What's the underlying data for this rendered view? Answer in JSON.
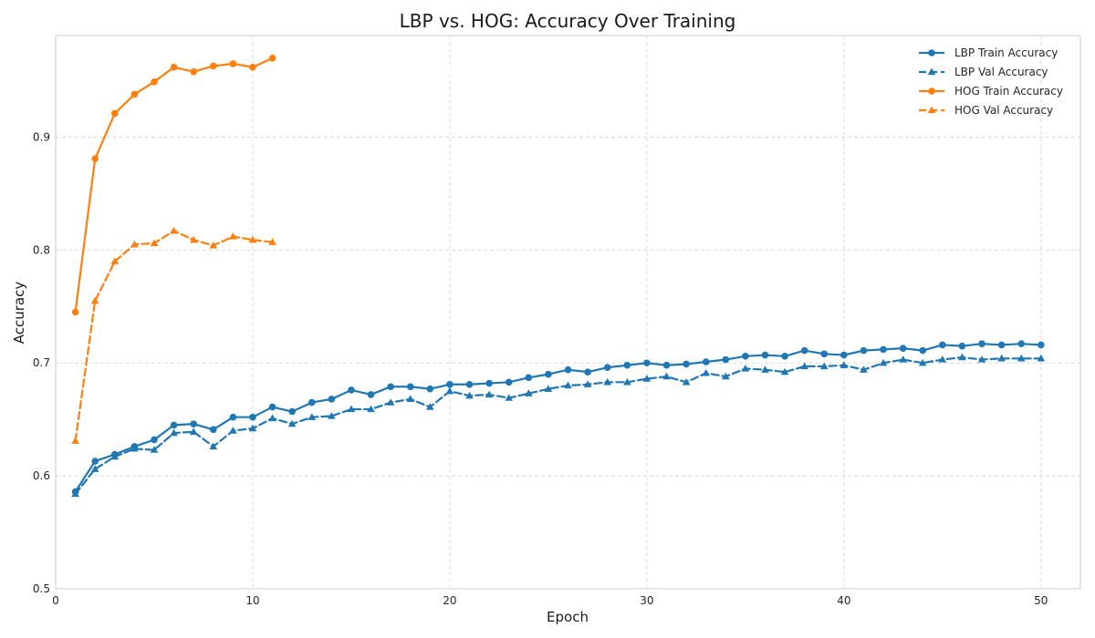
{
  "chart_data": {
    "type": "line",
    "title": "LBP vs. HOG: Accuracy Over Training",
    "xlabel": "Epoch",
    "ylabel": "Accuracy",
    "xlim": [
      0,
      52
    ],
    "ylim": [
      0.5,
      0.99
    ],
    "xticks": [
      0,
      10,
      20,
      30,
      40,
      50
    ],
    "yticks": [
      0.5,
      0.6,
      0.7,
      0.8,
      0.9
    ],
    "grid": true,
    "legend_position": "top-right",
    "series": [
      {
        "name": "LBP Train Accuracy",
        "color": "#1f77b4",
        "line_style": "solid",
        "marker": "circle",
        "x": [
          1,
          2,
          3,
          4,
          5,
          6,
          7,
          8,
          9,
          10,
          11,
          12,
          13,
          14,
          15,
          16,
          17,
          18,
          19,
          20,
          21,
          22,
          23,
          24,
          25,
          26,
          27,
          28,
          29,
          30,
          31,
          32,
          33,
          34,
          35,
          36,
          37,
          38,
          39,
          40,
          41,
          42,
          43,
          44,
          45,
          46,
          47,
          48,
          49,
          50
        ],
        "y": [
          0.586,
          0.613,
          0.619,
          0.626,
          0.632,
          0.645,
          0.646,
          0.641,
          0.652,
          0.652,
          0.661,
          0.657,
          0.665,
          0.668,
          0.676,
          0.672,
          0.679,
          0.679,
          0.677,
          0.681,
          0.681,
          0.682,
          0.683,
          0.687,
          0.69,
          0.694,
          0.692,
          0.696,
          0.698,
          0.7,
          0.698,
          0.699,
          0.701,
          0.703,
          0.706,
          0.707,
          0.706,
          0.711,
          0.708,
          0.707,
          0.711,
          0.712,
          0.713,
          0.711,
          0.716,
          0.715,
          0.717,
          0.716,
          0.717,
          0.716
        ]
      },
      {
        "name": "LBP Val Accuracy",
        "color": "#1f77b4",
        "line_style": "dashed",
        "marker": "triangle",
        "x": [
          1,
          2,
          3,
          4,
          5,
          6,
          7,
          8,
          9,
          10,
          11,
          12,
          13,
          14,
          15,
          16,
          17,
          18,
          19,
          20,
          21,
          22,
          23,
          24,
          25,
          26,
          27,
          28,
          29,
          30,
          31,
          32,
          33,
          34,
          35,
          36,
          37,
          38,
          39,
          40,
          41,
          42,
          43,
          44,
          45,
          46,
          47,
          48,
          49,
          50
        ],
        "y": [
          0.584,
          0.606,
          0.617,
          0.624,
          0.623,
          0.638,
          0.639,
          0.626,
          0.64,
          0.642,
          0.651,
          0.646,
          0.652,
          0.653,
          0.659,
          0.659,
          0.665,
          0.668,
          0.661,
          0.675,
          0.671,
          0.672,
          0.669,
          0.673,
          0.677,
          0.68,
          0.681,
          0.683,
          0.683,
          0.686,
          0.688,
          0.683,
          0.691,
          0.688,
          0.695,
          0.694,
          0.692,
          0.697,
          0.697,
          0.698,
          0.694,
          0.7,
          0.703,
          0.7,
          0.703,
          0.705,
          0.703,
          0.704,
          0.704,
          0.704
        ]
      },
      {
        "name": "HOG Train Accuracy",
        "color": "#ff7f0e",
        "line_style": "solid",
        "marker": "circle",
        "x": [
          1,
          2,
          3,
          4,
          5,
          6,
          7,
          8,
          9,
          10,
          11
        ],
        "y": [
          0.745,
          0.881,
          0.921,
          0.938,
          0.949,
          0.962,
          0.958,
          0.963,
          0.965,
          0.962,
          0.97
        ]
      },
      {
        "name": "HOG Val Accuracy",
        "color": "#ff7f0e",
        "line_style": "dashed",
        "marker": "triangle",
        "x": [
          1,
          2,
          3,
          4,
          5,
          6,
          7,
          8,
          9,
          10,
          11
        ],
        "y": [
          0.631,
          0.755,
          0.79,
          0.805,
          0.806,
          0.817,
          0.809,
          0.804,
          0.812,
          0.809,
          0.807
        ]
      }
    ]
  }
}
